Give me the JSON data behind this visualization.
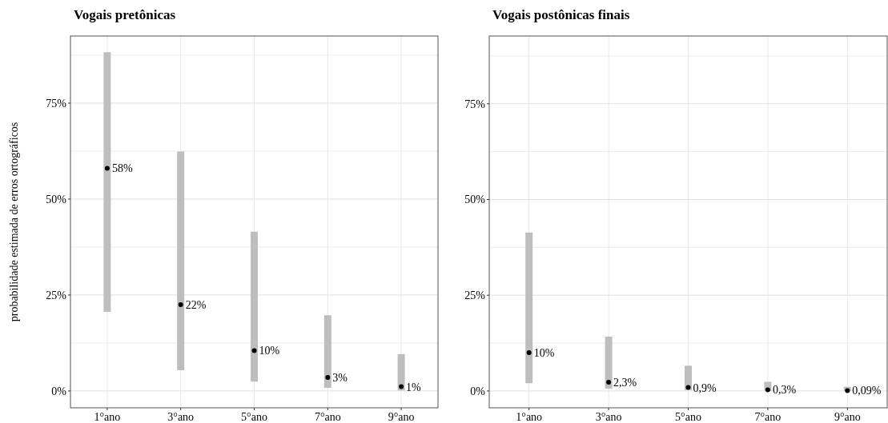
{
  "chart_data": [
    {
      "type": "scatter",
      "title": "Vogais pretônicas",
      "ylabel": "probabilidade estimada de erros ortográficos",
      "categories": [
        "1°ano",
        "3°ano",
        "5°ano",
        "7°ano",
        "9°ano"
      ],
      "values": [
        58,
        22.5,
        10.5,
        3.5,
        1.1
      ],
      "errors": [
        [
          20.6,
          88.3
        ],
        [
          5.4,
          62.4
        ],
        [
          2.4,
          41.5
        ],
        [
          0.8,
          19.7
        ],
        [
          0.1,
          9.6
        ]
      ],
      "value_labels": [
        "58%",
        "22%",
        "10%",
        "3%",
        "1%"
      ],
      "color": "#000000",
      "ylim": [
        -4.4,
        92.5
      ],
      "yticks": [
        {
          "value": 0,
          "label": "0%"
        },
        {
          "value": 12.5,
          "label": null
        },
        {
          "value": 25,
          "label": "25%"
        },
        {
          "value": 37.5,
          "label": null
        },
        {
          "value": 50,
          "label": "50%"
        },
        {
          "value": 62.5,
          "label": null
        },
        {
          "value": 75,
          "label": "75%"
        },
        {
          "value": 87.5,
          "label": null
        }
      ],
      "grid": true
    },
    {
      "type": "scatter",
      "title": "Vogais postônicas finais",
      "categories": [
        "1°ano",
        "3°ano",
        "5°ano",
        "7°ano",
        "9°ano"
      ],
      "values": [
        10,
        2.3,
        0.9,
        0.3,
        0.09
      ],
      "errors": [
        [
          2,
          41.4
        ],
        [
          0.6,
          14.2
        ],
        [
          0.2,
          6.6
        ],
        [
          0,
          2.4
        ],
        [
          0,
          1.1
        ]
      ],
      "value_labels": [
        "10%",
        "2,3%",
        "0,9%",
        "0,3%",
        "0,09%"
      ],
      "color": "#000000",
      "ylim": [
        -4.4,
        92.7
      ],
      "yticks": [
        {
          "value": 0,
          "label": "0%"
        },
        {
          "value": 12.5,
          "label": null
        },
        {
          "value": 25,
          "label": "25%"
        },
        {
          "value": 37.5,
          "label": null
        },
        {
          "value": 50,
          "label": "50%"
        },
        {
          "value": 62.5,
          "label": null
        },
        {
          "value": 75,
          "label": "75%"
        },
        {
          "value": 87.5,
          "label": null
        }
      ],
      "grid": true
    }
  ]
}
